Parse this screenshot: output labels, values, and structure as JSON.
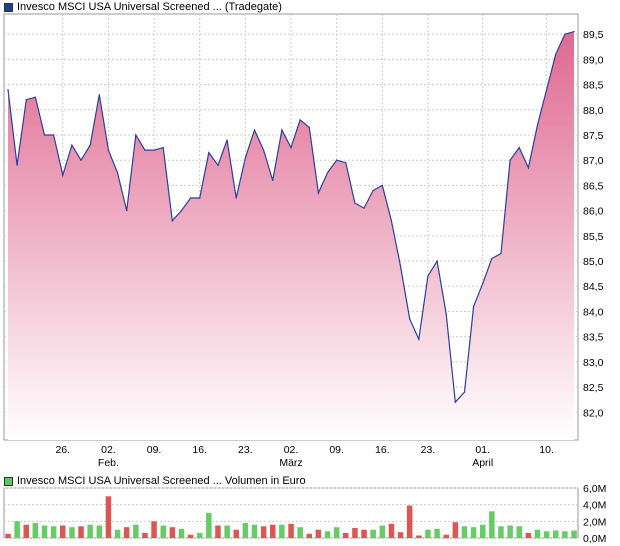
{
  "price_chart": {
    "legend_label": "Invesco MSCI USA Universal Screened ... (Tradegate)",
    "legend_color": "#1f3f8f"
  },
  "volume_chart": {
    "legend_label": "Invesco MSCI USA Universal Screened ... Volumen in Euro",
    "legend_color": "#5ac85a"
  },
  "colors": {
    "area_top": "#e06890",
    "area_bottom": "#ffffff",
    "line": "#2a3f9f",
    "grid": "#cccccc",
    "volume_up": "#66cc66",
    "volume_down": "#dd5555"
  },
  "chart_data": [
    {
      "type": "area",
      "title": "",
      "xlabel": "",
      "ylabel": "",
      "ylim": [
        81.45,
        89.9
      ],
      "y_ticks": [
        "82,0",
        "82,5",
        "83,0",
        "83,5",
        "84,0",
        "84,5",
        "85,0",
        "85,5",
        "86,0",
        "86,5",
        "87,0",
        "87,5",
        "88,0",
        "88,5",
        "89,0",
        "89,5"
      ],
      "y_tick_values": [
        82.0,
        82.5,
        83.0,
        83.5,
        84.0,
        84.5,
        85.0,
        85.5,
        86.0,
        86.5,
        87.0,
        87.5,
        88.0,
        88.5,
        89.0,
        89.5
      ],
      "x_ticks": [
        {
          "label": "26.",
          "index": 6
        },
        {
          "label": "02.",
          "sublabel": "Feb.",
          "index": 11
        },
        {
          "label": "09.",
          "index": 16
        },
        {
          "label": "16.",
          "index": 21
        },
        {
          "label": "23.",
          "index": 26
        },
        {
          "label": "02.",
          "sublabel": "März",
          "index": 31
        },
        {
          "label": "09.",
          "index": 36
        },
        {
          "label": "16.",
          "index": 41
        },
        {
          "label": "23.",
          "index": 46
        },
        {
          "label": "01.",
          "sublabel": "April",
          "index": 52
        },
        {
          "label": "10.",
          "index": 59
        }
      ],
      "series": [
        {
          "values": [
            88.4,
            86.9,
            88.2,
            88.25,
            87.5,
            87.5,
            86.7,
            87.3,
            87.0,
            87.3,
            88.3,
            87.2,
            86.75,
            86.0,
            87.5,
            87.2,
            87.2,
            87.25,
            85.8,
            86.0,
            86.25,
            86.25,
            87.15,
            86.9,
            87.4,
            86.25,
            87.05,
            87.6,
            87.2,
            86.6,
            87.6,
            87.25,
            87.8,
            87.65,
            86.35,
            86.75,
            87.0,
            86.95,
            86.15,
            86.05,
            86.4,
            86.5,
            85.8,
            84.9,
            83.85,
            83.45,
            84.7,
            85.0,
            83.95,
            82.2,
            82.4,
            84.1,
            84.55,
            85.05,
            85.15,
            87.0,
            87.25,
            86.85,
            87.7,
            88.4,
            89.1,
            89.5,
            89.55
          ]
        }
      ]
    },
    {
      "type": "bar",
      "title": "",
      "ylim": [
        0,
        6.0
      ],
      "y_ticks": [
        "6,0M",
        "4,0M",
        "2,0M",
        "0,0M"
      ],
      "y_tick_values": [
        6.0,
        4.0,
        2.0,
        0.0
      ],
      "values": [
        0.5,
        2.0,
        1.6,
        1.8,
        1.5,
        1.4,
        1.5,
        1.3,
        1.4,
        1.6,
        1.5,
        5.0,
        1.0,
        1.3,
        1.6,
        0.6,
        2.0,
        1.5,
        1.3,
        1.1,
        0.4,
        0.6,
        3.0,
        1.5,
        1.5,
        1.0,
        1.8,
        1.6,
        1.4,
        1.6,
        1.6,
        1.7,
        1.3,
        0.5,
        1.0,
        0.8,
        1.3,
        0.6,
        1.2,
        1.0,
        1.0,
        1.5,
        1.7,
        0.7,
        3.9,
        0.3,
        1.0,
        1.1,
        0.4,
        1.9,
        1.4,
        1.3,
        1.6,
        3.2,
        1.4,
        1.5,
        1.4,
        0.6,
        1.0,
        0.8,
        0.9,
        0.8,
        0.9
      ],
      "up": [
        false,
        true,
        false,
        true,
        true,
        true,
        false,
        true,
        false,
        true,
        true,
        false,
        true,
        false,
        true,
        false,
        false,
        true,
        false,
        true,
        false,
        true,
        true,
        false,
        true,
        false,
        true,
        true,
        false,
        false,
        true,
        false,
        true,
        false,
        false,
        true,
        true,
        false,
        false,
        false,
        true,
        true,
        false,
        false,
        false,
        false,
        true,
        true,
        false,
        false,
        true,
        true,
        true,
        true,
        true,
        true,
        true,
        false,
        true,
        true,
        true,
        true,
        true
      ]
    }
  ]
}
